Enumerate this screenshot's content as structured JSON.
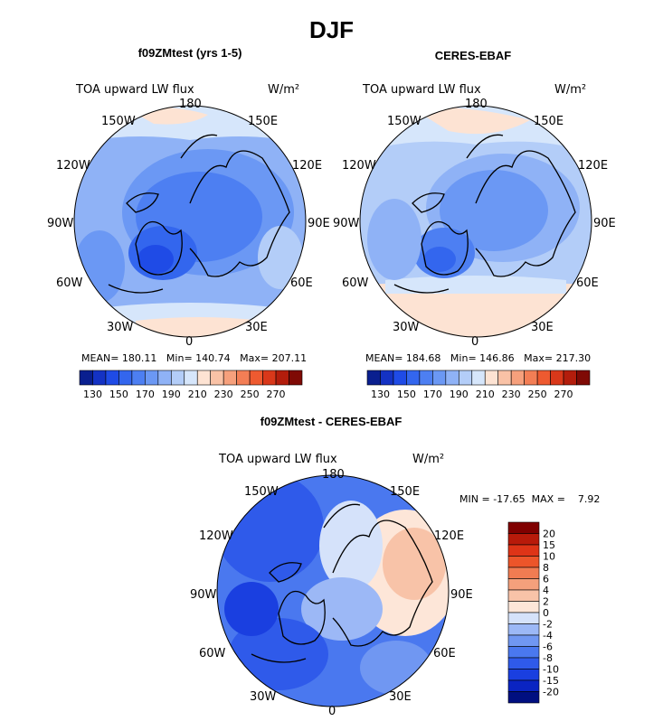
{
  "title": "DJF",
  "panels": [
    {
      "id": "model",
      "title": "f09ZMtest (yrs 1-5)",
      "variable": "TOA upward LW flux",
      "units": "W/m²",
      "lon_labels": {
        "top": "180",
        "bottom": "0",
        "left": "90W",
        "right": "90E",
        "ul1": "150W",
        "ul2": "120W",
        "ur1": "150E",
        "ur2": "120E",
        "ll1": "60W",
        "ll2": "30W",
        "lr1": "60E",
        "lr2": "30E"
      },
      "stats": {
        "mean_label": "MEAN=",
        "mean": "180.11",
        "min_label": "Min=",
        "min": "140.74",
        "max_label": "Max=",
        "max": "207.11"
      }
    },
    {
      "id": "obs",
      "title": "CERES-EBAF",
      "variable": "TOA upward LW flux",
      "units": "W/m²",
      "lon_labels": {
        "top": "180",
        "bottom": "0",
        "left": "90W",
        "right": "90E",
        "ul1": "150W",
        "ul2": "120W",
        "ur1": "150E",
        "ur2": "120E",
        "ll1": "60W",
        "ll2": "30W",
        "lr1": "60E",
        "lr2": "30E"
      },
      "stats": {
        "mean_label": "MEAN=",
        "mean": "184.68",
        "min_label": "Min=",
        "min": "146.86",
        "max_label": "Max=",
        "max": "217.30"
      }
    },
    {
      "id": "diff",
      "title": "f09ZMtest - CERES-EBAF",
      "variable": "TOA upward LW flux",
      "units": "W/m²",
      "lon_labels": {
        "top": "180",
        "bottom": "0",
        "left": "90W",
        "right": "90E",
        "ul1": "150W",
        "ul2": "120W",
        "ur1": "150E",
        "ur2": "120E",
        "ll1": "60W",
        "ll2": "30W",
        "lr1": "60E",
        "lr2": "30E"
      },
      "stats": {
        "min_label": "MIN =",
        "min": "-17.65",
        "max_label": "MAX =",
        "max": "7.92"
      }
    }
  ],
  "abs_colorbar": {
    "colors": [
      "#0a1f8f",
      "#1432c4",
      "#1f4be6",
      "#3366ee",
      "#4d7ff2",
      "#6b98f4",
      "#8fb2f6",
      "#b3cdf8",
      "#d6e6fb",
      "#fde3d3",
      "#f9c2a6",
      "#f6a07c",
      "#f37e55",
      "#ee5a30",
      "#d9381a",
      "#b31d0c",
      "#7f0a05"
    ],
    "tick_labels": [
      "130",
      "150",
      "170",
      "190",
      "210",
      "230",
      "250",
      "270"
    ]
  },
  "diff_colorbar": {
    "colors": [
      "#000f80",
      "#0a24c2",
      "#1a3fe0",
      "#2f5aea",
      "#4a78ef",
      "#7097f2",
      "#9cb8f6",
      "#d5e2fa",
      "#fde6d8",
      "#f8c3a8",
      "#f4a07c",
      "#f17c52",
      "#ec552a",
      "#de3417",
      "#b81a0a",
      "#800000"
    ],
    "tick_labels": [
      "20",
      "15",
      "10",
      "8",
      "6",
      "4",
      "2",
      "0",
      "-2",
      "-4",
      "-6",
      "-8",
      "-10",
      "-15",
      "-20"
    ]
  }
}
